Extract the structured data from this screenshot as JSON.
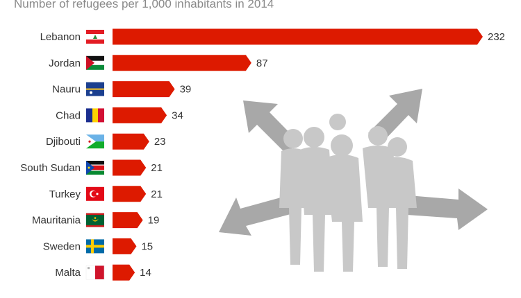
{
  "chart_data": {
    "type": "bar",
    "orientation": "horizontal",
    "subtitle": "Number of refugees per 1,000 inhabitants in 2014",
    "categories": [
      "Lebanon",
      "Jordan",
      "Nauru",
      "Chad",
      "Djibouti",
      "South Sudan",
      "Turkey",
      "Mauritania",
      "Sweden",
      "Malta"
    ],
    "values": [
      232,
      87,
      39,
      34,
      23,
      21,
      21,
      19,
      15,
      14
    ],
    "flags": [
      "lebanon-flag",
      "jordan-flag",
      "nauru-flag",
      "chad-flag",
      "djibouti-flag",
      "south-sudan-flag",
      "turkey-flag",
      "mauritania-flag",
      "sweden-flag",
      "malta-flag"
    ],
    "bar_color": "#dd1a00",
    "background_illustration": "refugee-family-silhouette-with-arrows-icon",
    "illustration_color": "#c8c8c8",
    "arrow_color": "#a8a8a8",
    "xlim": [
      0,
      232
    ],
    "grid": false,
    "legend": "none"
  }
}
